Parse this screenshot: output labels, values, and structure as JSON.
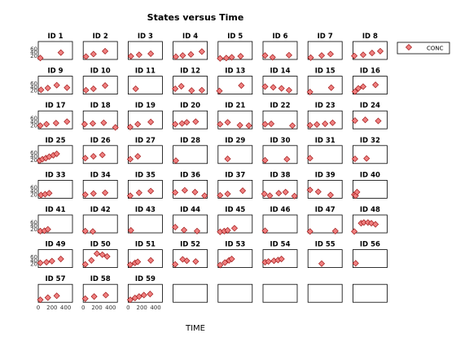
{
  "chart_data": {
    "type": "scatter",
    "title": "States versus Time",
    "xlabel": "TIME",
    "ylabel": "",
    "xlim": [
      0,
      500
    ],
    "ylim": [
      0,
      100
    ],
    "xticks": [
      0,
      200,
      400
    ],
    "yticks": [
      20,
      40,
      60
    ],
    "grid": false,
    "legend": {
      "placement": "top-right",
      "entries": [
        "CONC"
      ]
    },
    "series": [
      {
        "name": "CONC",
        "marker": "diamond",
        "color": "#f08080"
      }
    ],
    "colors": {
      "marker_fill": "#f08080",
      "marker_edge": "#a01818",
      "axes": "#000000"
    },
    "panels": [
      {
        "id": "ID 1",
        "points": [
          [
            30,
            8
          ],
          [
            330,
            38
          ]
        ]
      },
      {
        "id": "ID 2",
        "points": [
          [
            40,
            16
          ],
          [
            150,
            30
          ],
          [
            320,
            46
          ]
        ]
      },
      {
        "id": "ID 3",
        "points": [
          [
            40,
            18
          ],
          [
            160,
            26
          ],
          [
            330,
            32
          ]
        ]
      },
      {
        "id": "ID 4",
        "points": [
          [
            40,
            15
          ],
          [
            140,
            22
          ],
          [
            260,
            28
          ],
          [
            420,
            44
          ]
        ]
      },
      {
        "id": "ID 5",
        "points": [
          [
            30,
            6
          ],
          [
            120,
            8
          ],
          [
            200,
            12
          ],
          [
            330,
            18
          ]
        ]
      },
      {
        "id": "ID 6",
        "points": [
          [
            30,
            22
          ],
          [
            140,
            12
          ],
          [
            380,
            24
          ]
        ]
      },
      {
        "id": "ID 7",
        "points": [
          [
            40,
            10
          ],
          [
            200,
            22
          ],
          [
            330,
            30
          ]
        ]
      },
      {
        "id": "ID 8",
        "points": [
          [
            20,
            20
          ],
          [
            150,
            26
          ],
          [
            280,
            36
          ],
          [
            400,
            46
          ]
        ]
      },
      {
        "id": "ID 9",
        "points": [
          [
            40,
            24
          ],
          [
            140,
            34
          ],
          [
            270,
            50
          ],
          [
            420,
            36
          ]
        ]
      },
      {
        "id": "ID 10",
        "points": [
          [
            40,
            22
          ],
          [
            150,
            30
          ],
          [
            320,
            48
          ]
        ]
      },
      {
        "id": "ID 11",
        "points": [
          [
            110,
            30
          ]
        ]
      },
      {
        "id": "ID 12",
        "points": [
          [
            30,
            30
          ],
          [
            120,
            44
          ],
          [
            270,
            20
          ],
          [
            420,
            22
          ]
        ]
      },
      {
        "id": "ID 13",
        "points": [
          [
            20,
            18
          ],
          [
            340,
            48
          ]
        ]
      },
      {
        "id": "ID 14",
        "points": [
          [
            30,
            42
          ],
          [
            150,
            38
          ],
          [
            270,
            32
          ],
          [
            380,
            22
          ]
        ]
      },
      {
        "id": "ID 15",
        "points": [
          [
            30,
            12
          ],
          [
            340,
            36
          ]
        ]
      },
      {
        "id": "ID 16",
        "points": [
          [
            30,
            14
          ],
          [
            80,
            32
          ],
          [
            150,
            42
          ],
          [
            330,
            52
          ]
        ]
      },
      {
        "id": "ID 17",
        "points": [
          [
            30,
            18
          ],
          [
            120,
            26
          ],
          [
            260,
            32
          ],
          [
            420,
            40
          ]
        ]
      },
      {
        "id": "ID 18",
        "points": [
          [
            20,
            26
          ],
          [
            140,
            30
          ],
          [
            300,
            34
          ],
          [
            470,
            8
          ]
        ]
      },
      {
        "id": "ID 19",
        "points": [
          [
            30,
            10
          ],
          [
            140,
            26
          ],
          [
            330,
            38
          ]
        ]
      },
      {
        "id": "ID 20",
        "points": [
          [
            30,
            26
          ],
          [
            130,
            30
          ],
          [
            200,
            36
          ],
          [
            330,
            40
          ]
        ]
      },
      {
        "id": "ID 21",
        "points": [
          [
            30,
            26
          ],
          [
            140,
            36
          ],
          [
            320,
            20
          ],
          [
            450,
            18
          ]
        ]
      },
      {
        "id": "ID 22",
        "points": [
          [
            30,
            26
          ],
          [
            120,
            28
          ],
          [
            430,
            18
          ]
        ]
      },
      {
        "id": "ID 23",
        "points": [
          [
            30,
            20
          ],
          [
            130,
            24
          ],
          [
            250,
            28
          ],
          [
            360,
            34
          ]
        ]
      },
      {
        "id": "ID 24",
        "points": [
          [
            30,
            46
          ],
          [
            180,
            50
          ],
          [
            370,
            44
          ]
        ]
      },
      {
        "id": "ID 25",
        "points": [
          [
            20,
            16
          ],
          [
            60,
            24
          ],
          [
            110,
            30
          ],
          [
            160,
            38
          ],
          [
            220,
            46
          ],
          [
            270,
            54
          ]
        ]
      },
      {
        "id": "ID 26",
        "points": [
          [
            30,
            30
          ],
          [
            150,
            40
          ],
          [
            280,
            48
          ]
        ]
      },
      {
        "id": "ID 27",
        "points": [
          [
            30,
            24
          ],
          [
            140,
            40
          ]
        ]
      },
      {
        "id": "ID 28",
        "points": [
          [
            40,
            16
          ]
        ]
      },
      {
        "id": "ID 29",
        "points": [
          [
            140,
            26
          ]
        ]
      },
      {
        "id": "ID 30",
        "points": [
          [
            30,
            18
          ],
          [
            350,
            24
          ]
        ]
      },
      {
        "id": "ID 31",
        "points": [
          [
            30,
            30
          ]
        ]
      },
      {
        "id": "ID 32",
        "points": [
          [
            30,
            26
          ],
          [
            200,
            28
          ]
        ]
      },
      {
        "id": "ID 33",
        "points": [
          [
            40,
            18
          ],
          [
            100,
            22
          ],
          [
            160,
            28
          ]
        ]
      },
      {
        "id": "ID 34",
        "points": [
          [
            30,
            20
          ],
          [
            150,
            26
          ],
          [
            320,
            30
          ]
        ]
      },
      {
        "id": "ID 35",
        "points": [
          [
            30,
            14
          ],
          [
            160,
            30
          ],
          [
            330,
            40
          ]
        ]
      },
      {
        "id": "ID 36",
        "points": [
          [
            30,
            32
          ],
          [
            170,
            44
          ],
          [
            320,
            34
          ],
          [
            460,
            14
          ]
        ]
      },
      {
        "id": "ID 37",
        "points": [
          [
            30,
            16
          ],
          [
            140,
            24
          ],
          [
            360,
            42
          ]
        ]
      },
      {
        "id": "ID 38",
        "points": [
          [
            20,
            24
          ],
          [
            100,
            14
          ],
          [
            230,
            28
          ],
          [
            330,
            34
          ],
          [
            460,
            12
          ]
        ]
      },
      {
        "id": "ID 39",
        "points": [
          [
            30,
            46
          ],
          [
            150,
            36
          ],
          [
            330,
            18
          ]
        ]
      },
      {
        "id": "ID 40",
        "points": [
          [
            20,
            20
          ],
          [
            40,
            14
          ],
          [
            60,
            34
          ]
        ]
      },
      {
        "id": "ID 41",
        "points": [
          [
            30,
            10
          ],
          [
            90,
            12
          ],
          [
            140,
            20
          ]
        ]
      },
      {
        "id": "ID 42",
        "points": [
          [
            30,
            10
          ],
          [
            140,
            8
          ]
        ]
      },
      {
        "id": "ID 43",
        "points": [
          [
            40,
            14
          ]
        ]
      },
      {
        "id": "ID 44",
        "points": [
          [
            30,
            32
          ],
          [
            160,
            16
          ],
          [
            350,
            10
          ]
        ]
      },
      {
        "id": "ID 45",
        "points": [
          [
            30,
            6
          ],
          [
            90,
            10
          ],
          [
            140,
            14
          ],
          [
            240,
            26
          ]
        ]
      },
      {
        "id": "ID 46",
        "points": [
          [
            30,
            12
          ]
        ]
      },
      {
        "id": "ID 47",
        "points": [
          [
            30,
            8
          ],
          [
            400,
            10
          ]
        ]
      },
      {
        "id": "ID 48",
        "points": [
          [
            20,
            8
          ],
          [
            120,
            54
          ],
          [
            160,
            58
          ],
          [
            220,
            58
          ],
          [
            270,
            54
          ],
          [
            330,
            48
          ]
        ]
      },
      {
        "id": "ID 49",
        "points": [
          [
            30,
            26
          ],
          [
            120,
            30
          ],
          [
            200,
            36
          ],
          [
            330,
            48
          ]
        ]
      },
      {
        "id": "ID 50",
        "points": [
          [
            30,
            18
          ],
          [
            120,
            40
          ],
          [
            200,
            78
          ],
          [
            280,
            72
          ],
          [
            350,
            62
          ]
        ]
      },
      {
        "id": "ID 51",
        "points": [
          [
            30,
            16
          ],
          [
            100,
            26
          ],
          [
            140,
            32
          ],
          [
            330,
            40
          ]
        ]
      },
      {
        "id": "ID 52",
        "points": [
          [
            30,
            18
          ],
          [
            140,
            46
          ],
          [
            200,
            38
          ],
          [
            330,
            34
          ]
        ]
      },
      {
        "id": "ID 53",
        "points": [
          [
            30,
            14
          ],
          [
            100,
            28
          ],
          [
            160,
            40
          ],
          [
            200,
            48
          ]
        ]
      },
      {
        "id": "ID 54",
        "points": [
          [
            30,
            30
          ],
          [
            80,
            34
          ],
          [
            160,
            38
          ],
          [
            220,
            42
          ],
          [
            270,
            48
          ]
        ]
      },
      {
        "id": "ID 55",
        "points": [
          [
            200,
            22
          ]
        ]
      },
      {
        "id": "ID 56",
        "points": [
          [
            40,
            24
          ]
        ]
      },
      {
        "id": "ID 57",
        "points": [
          [
            30,
            14
          ],
          [
            140,
            26
          ],
          [
            270,
            36
          ]
        ]
      },
      {
        "id": "ID 58",
        "points": [
          [
            30,
            20
          ],
          [
            160,
            32
          ],
          [
            330,
            40
          ]
        ]
      },
      {
        "id": "ID 59",
        "points": [
          [
            30,
            14
          ],
          [
            100,
            24
          ],
          [
            160,
            32
          ],
          [
            230,
            40
          ],
          [
            320,
            46
          ]
        ]
      }
    ]
  }
}
